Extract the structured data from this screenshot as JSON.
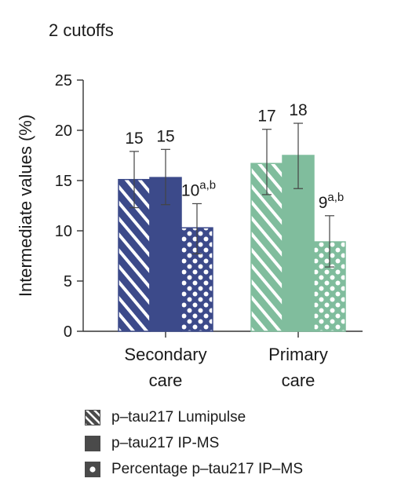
{
  "chart_data": {
    "type": "bar",
    "title": "2 cutoffs",
    "ylabel": "Intermediate values (%)",
    "xlabel": "",
    "ylim": [
      0,
      25
    ],
    "yticks": [
      0,
      5,
      10,
      15,
      20,
      25
    ],
    "grid": false,
    "legend_placement": "bottom",
    "categories": [
      {
        "line1": "Secondary",
        "line2": "care"
      },
      {
        "line1": "Primary",
        "line2": "care"
      }
    ],
    "series": [
      {
        "name": "p–tau217 Lumipulse",
        "pattern": "stripes",
        "values": [
          15.1,
          16.7
        ],
        "errors": [
          [
            12.3,
            17.9
          ],
          [
            13.6,
            20.1
          ]
        ],
        "labels": [
          {
            "text": "15",
            "sup": ""
          },
          {
            "text": "17",
            "sup": ""
          }
        ]
      },
      {
        "name": "p–tau217 IP-MS",
        "pattern": "solid",
        "values": [
          15.3,
          17.5
        ],
        "errors": [
          [
            12.6,
            18.1
          ],
          [
            14.2,
            20.7
          ]
        ],
        "labels": [
          {
            "text": "15",
            "sup": ""
          },
          {
            "text": "18",
            "sup": ""
          }
        ]
      },
      {
        "name": "Percentage p–tau217 IP–MS",
        "pattern": "dots",
        "values": [
          10.3,
          8.9
        ],
        "errors": [
          [
            7.7,
            12.7
          ],
          [
            6.4,
            11.5
          ]
        ],
        "labels": [
          {
            "text": "10",
            "sup": "a,b"
          },
          {
            "text": "9",
            "sup": "a,b"
          }
        ]
      }
    ],
    "colors": {
      "secondary": "#3c4a8a",
      "primary": "#80bd9d",
      "error_bar": "#444444",
      "legend_swatch": "#4a4a4a"
    }
  }
}
